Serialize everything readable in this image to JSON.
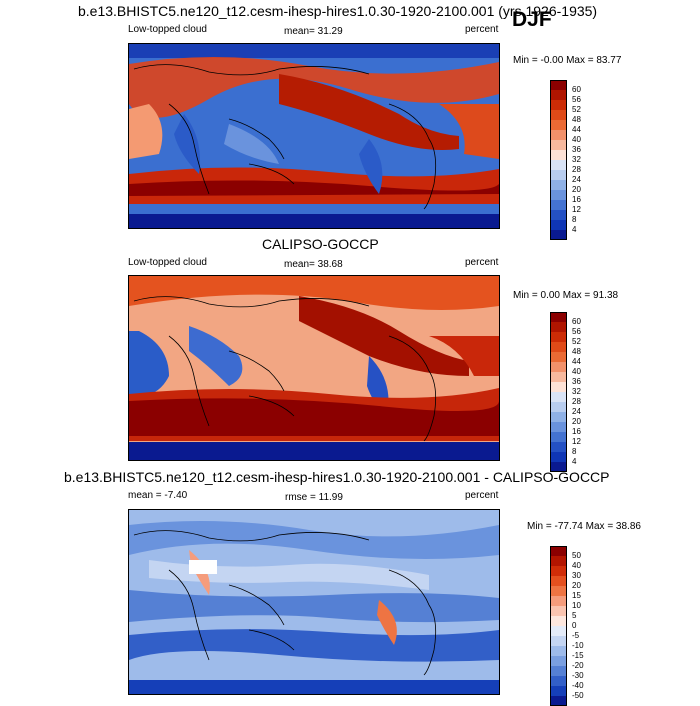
{
  "season": "DJF",
  "panels": [
    {
      "id": "model",
      "title": "b.e13.BHISTC5.ne120_t12.cesm-ihesp-hires1.0.30-1920-2100.001 (yrs 1926-1935)",
      "left_label": "Low-topped cloud",
      "center_label": "mean=  31.29",
      "right_label": "percent",
      "minmax": "Min = -0.00 Max =  83.77",
      "colorbar_labels": [
        "60",
        "56",
        "52",
        "48",
        "44",
        "40",
        "36",
        "32",
        "28",
        "24",
        "20",
        "16",
        "12",
        "8",
        "4"
      ],
      "colorbar_colors": [
        "#8b0000",
        "#b01500",
        "#cc2c06",
        "#df4a18",
        "#ea6a34",
        "#f2916a",
        "#f7b99e",
        "#fde2d6",
        "#d9e3f5",
        "#b8cdef",
        "#8fb1e6",
        "#6a93dd",
        "#4473d1",
        "#2451c4",
        "#0f36b5",
        "#0a1a90"
      ]
    },
    {
      "id": "obs",
      "title": "CALIPSO-GOCCP",
      "left_label": "Low-topped cloud",
      "center_label": "mean=  38.68",
      "right_label": "percent",
      "minmax": "Min =   0.00 Max =  91.38",
      "colorbar_labels": [
        "60",
        "56",
        "52",
        "48",
        "44",
        "40",
        "36",
        "32",
        "28",
        "24",
        "20",
        "16",
        "12",
        "8",
        "4"
      ],
      "colorbar_colors": [
        "#8b0000",
        "#b01500",
        "#cc2c06",
        "#df4a18",
        "#ea6a34",
        "#f2916a",
        "#f7b99e",
        "#fde2d6",
        "#d9e3f5",
        "#b8cdef",
        "#8fb1e6",
        "#6a93dd",
        "#4473d1",
        "#2451c4",
        "#0f36b5",
        "#0a1a90"
      ]
    },
    {
      "id": "diff",
      "title": "b.e13.BHISTC5.ne120_t12.cesm-ihesp-hires1.0.30-1920-2100.001 - CALIPSO-GOCCP",
      "left_label": "mean = -7.40",
      "center_label": "rmse =  11.99",
      "right_label": "percent",
      "minmax": "Min = -77.74 Max =  38.86",
      "colorbar_labels": [
        "50",
        "40",
        "30",
        "20",
        "15",
        "10",
        "5",
        "0",
        "-5",
        "-10",
        "-15",
        "-20",
        "-30",
        "-40",
        "-50"
      ],
      "colorbar_colors": [
        "#8b0000",
        "#b31500",
        "#d02d08",
        "#e4501f",
        "#ee7443",
        "#f59c7c",
        "#fac4b0",
        "#fde7de",
        "#e4ebf8",
        "#c4d5f2",
        "#9ebbea",
        "#7a9fe0",
        "#5580d4",
        "#325fc8",
        "#153fb8",
        "#0a1a90"
      ]
    }
  ]
}
